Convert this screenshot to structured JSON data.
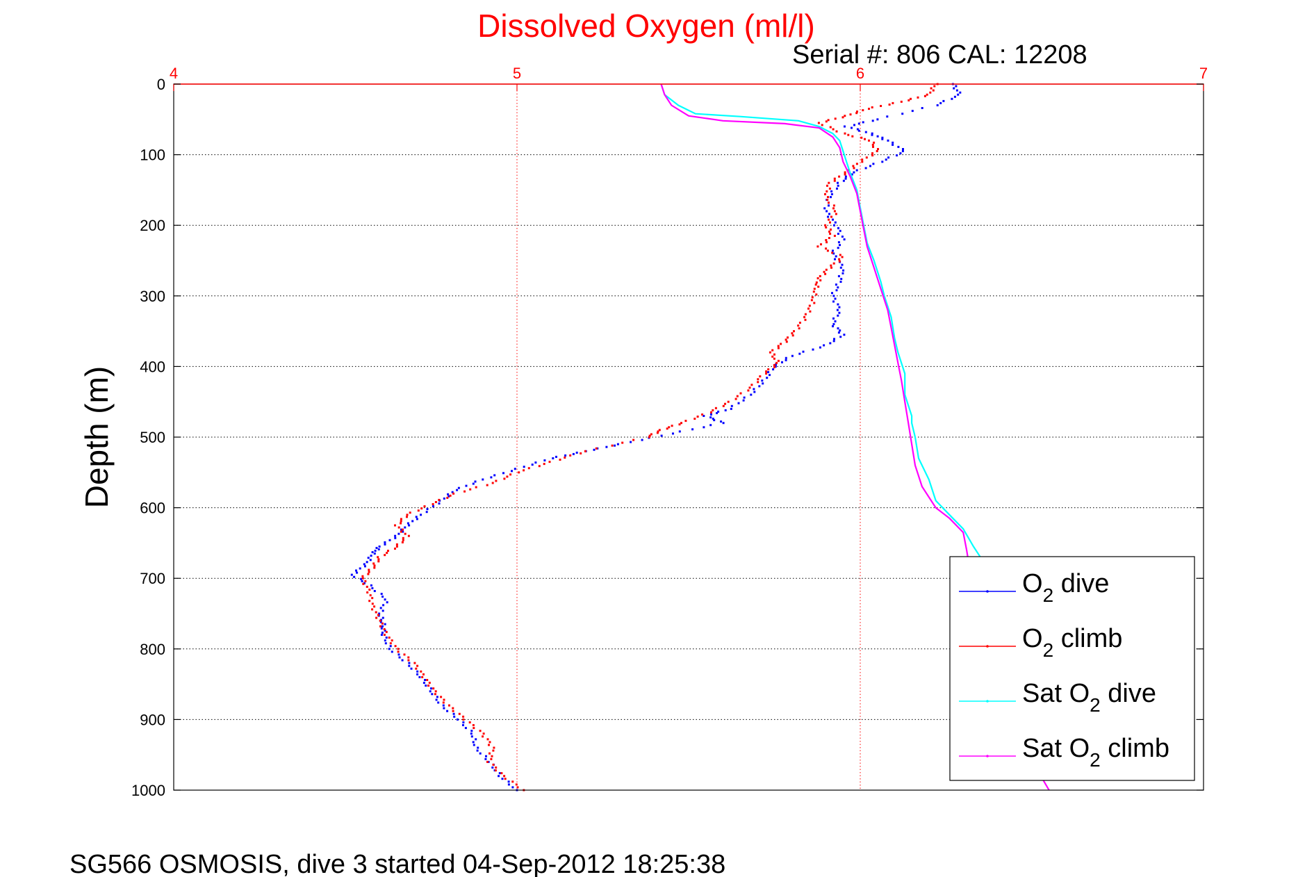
{
  "chart_data": {
    "type": "line",
    "title": "Dissolved Oxygen (ml/l)",
    "subtitle": "Serial #: 806  CAL: 12208",
    "footer": "SG566 OSMOSIS, dive 3 started 04-Sep-2012 18:25:38",
    "xlabel": "",
    "ylabel": "Depth (m)",
    "xlim": [
      4,
      7
    ],
    "ylim": [
      0,
      1000
    ],
    "y_reversed": true,
    "x_axis_position": "top",
    "x_ticks": [
      4,
      5,
      6,
      7
    ],
    "x_tick_labels": [
      "4",
      "5",
      "6",
      "7"
    ],
    "y_ticks": [
      0,
      100,
      200,
      300,
      400,
      500,
      600,
      700,
      800,
      900,
      1000
    ],
    "y_tick_labels": [
      "0",
      "100",
      "200",
      "300",
      "400",
      "500",
      "600",
      "700",
      "800",
      "900",
      "1000"
    ],
    "grid": true,
    "legend_position": "bottom-right",
    "colors": {
      "title": "#ff0000",
      "x_tick_labels": "#ff0000",
      "x_grid": "#ff0000",
      "y_grid": "#000000",
      "axes": "#000000"
    },
    "series": [
      {
        "name": "O2 dive",
        "legend_main": "O",
        "legend_sub": "2",
        "legend_rest": " dive",
        "color": "#0000ff",
        "style": "dots",
        "points": [
          [
            6.27,
            0
          ],
          [
            6.29,
            15
          ],
          [
            6.22,
            30
          ],
          [
            6.05,
            50
          ],
          [
            5.96,
            60
          ],
          [
            6.03,
            70
          ],
          [
            6.08,
            80
          ],
          [
            6.13,
            95
          ],
          [
            6.06,
            110
          ],
          [
            5.98,
            125
          ],
          [
            5.94,
            140
          ],
          [
            5.91,
            160
          ],
          [
            5.9,
            180
          ],
          [
            5.93,
            200
          ],
          [
            5.95,
            220
          ],
          [
            5.92,
            240
          ],
          [
            5.95,
            260
          ],
          [
            5.94,
            280
          ],
          [
            5.92,
            300
          ],
          [
            5.94,
            320
          ],
          [
            5.92,
            340
          ],
          [
            5.95,
            355
          ],
          [
            5.9,
            370
          ],
          [
            5.8,
            385
          ],
          [
            5.75,
            400
          ],
          [
            5.72,
            420
          ],
          [
            5.68,
            440
          ],
          [
            5.62,
            460
          ],
          [
            5.55,
            470
          ],
          [
            5.6,
            480
          ],
          [
            5.45,
            495
          ],
          [
            5.3,
            510
          ],
          [
            5.2,
            520
          ],
          [
            5.1,
            530
          ],
          [
            5.0,
            545
          ],
          [
            4.9,
            560
          ],
          [
            4.82,
            575
          ],
          [
            4.78,
            590
          ],
          [
            4.72,
            610
          ],
          [
            4.68,
            625
          ],
          [
            4.65,
            640
          ],
          [
            4.6,
            655
          ],
          [
            4.58,
            665
          ],
          [
            4.56,
            680
          ],
          [
            4.52,
            695
          ],
          [
            4.57,
            710
          ],
          [
            4.62,
            730
          ],
          [
            4.6,
            750
          ],
          [
            4.61,
            765
          ],
          [
            4.61,
            780
          ],
          [
            4.63,
            800
          ],
          [
            4.68,
            820
          ],
          [
            4.72,
            840
          ],
          [
            4.75,
            860
          ],
          [
            4.78,
            880
          ],
          [
            4.83,
            900
          ],
          [
            4.87,
            920
          ],
          [
            4.88,
            940
          ],
          [
            4.92,
            960
          ],
          [
            4.95,
            980
          ],
          [
            5.0,
            1000
          ]
        ]
      },
      {
        "name": "O2 climb",
        "legend_main": "O",
        "legend_sub": "2",
        "legend_rest": " climb",
        "color": "#ff0000",
        "style": "dots",
        "points": [
          [
            6.22,
            0
          ],
          [
            6.2,
            15
          ],
          [
            6.12,
            25
          ],
          [
            6.02,
            35
          ],
          [
            5.96,
            45
          ],
          [
            5.88,
            55
          ],
          [
            5.95,
            70
          ],
          [
            6.03,
            80
          ],
          [
            6.05,
            95
          ],
          [
            6.0,
            110
          ],
          [
            5.96,
            125
          ],
          [
            5.91,
            140
          ],
          [
            5.9,
            160
          ],
          [
            5.93,
            180
          ],
          [
            5.9,
            200
          ],
          [
            5.92,
            215
          ],
          [
            5.88,
            230
          ],
          [
            5.95,
            245
          ],
          [
            5.91,
            260
          ],
          [
            5.88,
            275
          ],
          [
            5.87,
            290
          ],
          [
            5.86,
            310
          ],
          [
            5.84,
            330
          ],
          [
            5.81,
            350
          ],
          [
            5.78,
            365
          ],
          [
            5.74,
            380
          ],
          [
            5.76,
            395
          ],
          [
            5.72,
            410
          ],
          [
            5.68,
            430
          ],
          [
            5.62,
            450
          ],
          [
            5.56,
            465
          ],
          [
            5.48,
            480
          ],
          [
            5.42,
            490
          ],
          [
            5.38,
            500
          ],
          [
            5.2,
            520
          ],
          [
            5.1,
            535
          ],
          [
            5.0,
            550
          ],
          [
            4.93,
            565
          ],
          [
            4.82,
            580
          ],
          [
            4.75,
            595
          ],
          [
            4.68,
            610
          ],
          [
            4.65,
            625
          ],
          [
            4.68,
            640
          ],
          [
            4.65,
            655
          ],
          [
            4.6,
            670
          ],
          [
            4.58,
            685
          ],
          [
            4.55,
            700
          ],
          [
            4.57,
            720
          ],
          [
            4.58,
            740
          ],
          [
            4.6,
            760
          ],
          [
            4.62,
            780
          ],
          [
            4.65,
            800
          ],
          [
            4.7,
            820
          ],
          [
            4.73,
            840
          ],
          [
            4.76,
            860
          ],
          [
            4.8,
            880
          ],
          [
            4.85,
            900
          ],
          [
            4.9,
            920
          ],
          [
            4.93,
            940
          ],
          [
            4.92,
            960
          ],
          [
            4.96,
            980
          ],
          [
            5.02,
            1000
          ]
        ]
      },
      {
        "name": "Sat O2 dive",
        "legend_main": "Sat O",
        "legend_sub": "2",
        "legend_rest": " dive",
        "color": "#00ffff",
        "style": "line",
        "points": [
          [
            5.42,
            0
          ],
          [
            5.43,
            15
          ],
          [
            5.47,
            30
          ],
          [
            5.52,
            42
          ],
          [
            5.65,
            46
          ],
          [
            5.82,
            52
          ],
          [
            5.88,
            60
          ],
          [
            5.92,
            70
          ],
          [
            5.94,
            80
          ],
          [
            5.95,
            95
          ],
          [
            5.96,
            110
          ],
          [
            5.97,
            125
          ],
          [
            5.99,
            150
          ],
          [
            6.0,
            175
          ],
          [
            6.01,
            200
          ],
          [
            6.02,
            225
          ],
          [
            6.04,
            250
          ],
          [
            6.06,
            280
          ],
          [
            6.07,
            300
          ],
          [
            6.09,
            330
          ],
          [
            6.1,
            360
          ],
          [
            6.11,
            380
          ],
          [
            6.13,
            410
          ],
          [
            6.13,
            440
          ],
          [
            6.15,
            470
          ],
          [
            6.15,
            480
          ],
          [
            6.16,
            500
          ],
          [
            6.17,
            530
          ],
          [
            6.2,
            560
          ],
          [
            6.22,
            590
          ],
          [
            6.26,
            610
          ],
          [
            6.3,
            630
          ],
          [
            6.33,
            655
          ],
          [
            6.35,
            670
          ]
        ]
      },
      {
        "name": "Sat O2 climb",
        "legend_main": "Sat O",
        "legend_sub": "2",
        "legend_rest": " climb",
        "color": "#ff00ff",
        "style": "line",
        "points": [
          [
            5.42,
            0
          ],
          [
            5.43,
            15
          ],
          [
            5.45,
            30
          ],
          [
            5.5,
            45
          ],
          [
            5.6,
            52
          ],
          [
            5.78,
            56
          ],
          [
            5.88,
            62
          ],
          [
            5.92,
            75
          ],
          [
            5.94,
            90
          ],
          [
            5.95,
            110
          ],
          [
            5.97,
            130
          ],
          [
            5.99,
            155
          ],
          [
            6.0,
            180
          ],
          [
            6.01,
            205
          ],
          [
            6.02,
            230
          ],
          [
            6.04,
            260
          ],
          [
            6.06,
            290
          ],
          [
            6.08,
            320
          ],
          [
            6.09,
            345
          ],
          [
            6.1,
            370
          ],
          [
            6.11,
            395
          ],
          [
            6.12,
            420
          ],
          [
            6.13,
            450
          ],
          [
            6.14,
            480
          ],
          [
            6.15,
            510
          ],
          [
            6.16,
            540
          ],
          [
            6.18,
            570
          ],
          [
            6.22,
            600
          ],
          [
            6.26,
            615
          ],
          [
            6.3,
            635
          ],
          [
            6.31,
            660
          ],
          [
            6.32,
            690
          ],
          [
            6.34,
            720
          ],
          [
            6.36,
            760
          ],
          [
            6.38,
            800
          ],
          [
            6.41,
            850
          ],
          [
            6.45,
            900
          ],
          [
            6.5,
            950
          ],
          [
            6.52,
            975
          ],
          [
            6.55,
            1000
          ]
        ]
      }
    ]
  }
}
